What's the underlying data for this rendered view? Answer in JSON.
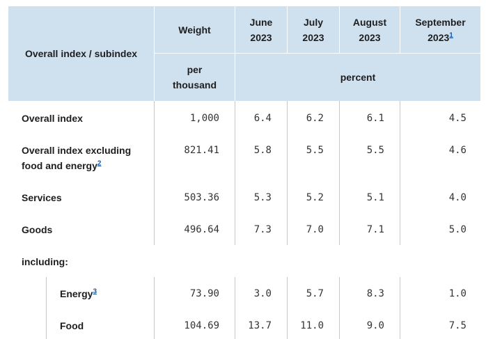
{
  "header": {
    "col_label": "Overall index / subindex",
    "weight": "Weight",
    "weight_unit_line1": "per",
    "weight_unit_line2": "thousand",
    "months": [
      {
        "line1": "June",
        "line2": "2023",
        "footnote": ""
      },
      {
        "line1": "July",
        "line2": "2023",
        "footnote": ""
      },
      {
        "line1": "August",
        "line2": "2023",
        "footnote": ""
      },
      {
        "line1": "September",
        "line2": "2023",
        "footnote": "1"
      }
    ],
    "unit": "percent"
  },
  "rows": [
    {
      "label": "Overall index",
      "label_line2": "",
      "footnote": "",
      "weight": "1,000",
      "values": [
        "6.4",
        "6.2",
        "6.1",
        "4.5"
      ]
    },
    {
      "label": "Overall index excluding",
      "label_line2": "food and energy",
      "footnote": "2",
      "weight": "821.41",
      "values": [
        "5.8",
        "5.5",
        "5.5",
        "4.6"
      ]
    },
    {
      "label": "Services",
      "label_line2": "",
      "footnote": "",
      "weight": "503.36",
      "values": [
        "5.3",
        "5.2",
        "5.1",
        "4.0"
      ]
    },
    {
      "label": "Goods",
      "label_line2": "",
      "footnote": "",
      "weight": "496.64",
      "values": [
        "7.3",
        "7.0",
        "7.1",
        "5.0"
      ]
    }
  ],
  "including_label": "including:",
  "subrows": [
    {
      "label": "Energy",
      "footnote": "3",
      "weight": "73.90",
      "values": [
        "3.0",
        "5.7",
        "8.3",
        "1.0"
      ]
    },
    {
      "label": "Food",
      "footnote": "",
      "weight": "104.69",
      "values": [
        "13.7",
        "11.0",
        "9.0",
        "7.5"
      ]
    }
  ]
}
